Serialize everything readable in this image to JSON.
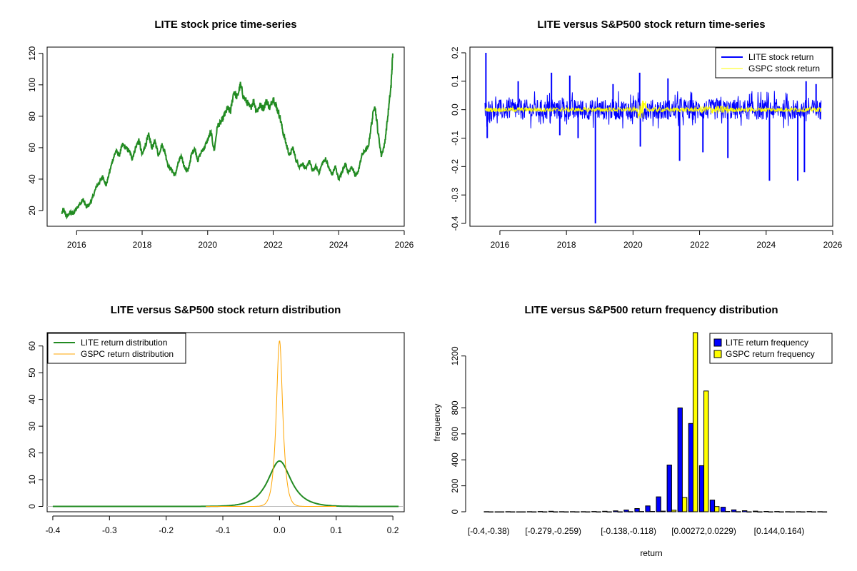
{
  "chart_data": [
    {
      "type": "line",
      "title": "LITE stock price time-series",
      "xlabel": "",
      "ylabel": "",
      "xlim": [
        2015.1,
        2026.0
      ],
      "ylim": [
        10,
        124
      ],
      "x_ticks": [
        2016,
        2018,
        2020,
        2022,
        2024,
        2026
      ],
      "y_ticks": [
        20,
        40,
        60,
        80,
        100,
        120
      ],
      "series": [
        {
          "color": "#228b22",
          "x": [
            2015.55,
            2015.6,
            2015.7,
            2015.8,
            2015.9,
            2016.0,
            2016.1,
            2016.2,
            2016.3,
            2016.4,
            2016.5,
            2016.6,
            2016.7,
            2016.8,
            2016.9,
            2017.0,
            2017.1,
            2017.2,
            2017.3,
            2017.4,
            2017.5,
            2017.6,
            2017.7,
            2017.8,
            2017.9,
            2018.0,
            2018.1,
            2018.2,
            2018.3,
            2018.4,
            2018.5,
            2018.6,
            2018.7,
            2018.8,
            2018.9,
            2019.0,
            2019.1,
            2019.2,
            2019.3,
            2019.4,
            2019.5,
            2019.6,
            2019.7,
            2019.8,
            2019.9,
            2020.0,
            2020.1,
            2020.2,
            2020.3,
            2020.4,
            2020.5,
            2020.6,
            2020.7,
            2020.8,
            2020.9,
            2021.0,
            2021.1,
            2021.2,
            2021.3,
            2021.4,
            2021.5,
            2021.6,
            2021.7,
            2021.8,
            2021.9,
            2022.0,
            2022.1,
            2022.2,
            2022.3,
            2022.4,
            2022.5,
            2022.6,
            2022.7,
            2022.8,
            2022.9,
            2023.0,
            2023.1,
            2023.2,
            2023.3,
            2023.4,
            2023.5,
            2023.6,
            2023.7,
            2023.8,
            2023.9,
            2024.0,
            2024.1,
            2024.2,
            2024.3,
            2024.4,
            2024.5,
            2024.6,
            2024.7,
            2024.8,
            2024.9,
            2025.0,
            2025.1,
            2025.2,
            2025.3,
            2025.4,
            2025.5,
            2025.6,
            2025.65
          ],
          "y": [
            18,
            21,
            16,
            19,
            18,
            22,
            24,
            27,
            22,
            24,
            29,
            35,
            38,
            42,
            36,
            44,
            52,
            58,
            55,
            62,
            60,
            58,
            53,
            60,
            65,
            55,
            62,
            68,
            60,
            64,
            55,
            62,
            57,
            48,
            46,
            42,
            50,
            55,
            47,
            45,
            55,
            60,
            52,
            57,
            60,
            65,
            70,
            58,
            74,
            76,
            80,
            85,
            83,
            96,
            92,
            100,
            92,
            89,
            85,
            90,
            83,
            87,
            85,
            90,
            85,
            92,
            86,
            80,
            70,
            62,
            55,
            60,
            52,
            48,
            50,
            46,
            52,
            45,
            48,
            44,
            50,
            53,
            47,
            43,
            48,
            40,
            44,
            50,
            44,
            48,
            42,
            45,
            55,
            58,
            60,
            75,
            88,
            70,
            55,
            62,
            80,
            100,
            120
          ]
        }
      ]
    },
    {
      "type": "line",
      "title": "LITE versus S&P500 stock return time-series",
      "xlabel": "",
      "ylabel": "",
      "xlim": [
        2015.1,
        2026.0
      ],
      "ylim": [
        -0.41,
        0.22
      ],
      "x_ticks": [
        2016,
        2018,
        2020,
        2022,
        2024,
        2026
      ],
      "y_ticks": [
        -0.4,
        -0.3,
        -0.2,
        -0.1,
        0.0,
        0.1,
        0.2
      ],
      "y_tick_labels": [
        "-0.4",
        "-0.3",
        "-0.2",
        "-0.1",
        "0.0",
        "0.1",
        "0.2"
      ],
      "legend": "top-right",
      "series": [
        {
          "name": "LITE stock return",
          "color": "#0000ff",
          "x_range": [
            2015.55,
            2025.65
          ],
          "typical_abs": 0.03
        },
        {
          "name": "GSPC stock return",
          "color": "#ffff00",
          "x_range": [
            2015.55,
            2025.65
          ],
          "typical_abs": 0.008
        }
      ],
      "spikes": [
        {
          "x": 2015.58,
          "y": 0.2
        },
        {
          "x": 2015.62,
          "y": -0.1
        },
        {
          "x": 2016.55,
          "y": 0.1
        },
        {
          "x": 2017.55,
          "y": 0.13
        },
        {
          "x": 2017.8,
          "y": -0.09
        },
        {
          "x": 2018.1,
          "y": 0.12
        },
        {
          "x": 2018.35,
          "y": -0.1
        },
        {
          "x": 2018.87,
          "y": -0.4
        },
        {
          "x": 2019.4,
          "y": 0.09
        },
        {
          "x": 2020.2,
          "y": 0.13
        },
        {
          "x": 2020.22,
          "y": -0.13
        },
        {
          "x": 2021.05,
          "y": 0.11
        },
        {
          "x": 2021.4,
          "y": -0.18
        },
        {
          "x": 2022.1,
          "y": -0.15
        },
        {
          "x": 2022.85,
          "y": -0.17
        },
        {
          "x": 2024.1,
          "y": -0.25
        },
        {
          "x": 2024.95,
          "y": -0.25
        },
        {
          "x": 2025.15,
          "y": -0.22
        },
        {
          "x": 2025.2,
          "y": 0.1
        },
        {
          "x": 2025.5,
          "y": 0.09
        }
      ]
    },
    {
      "type": "line",
      "title": "LITE versus S&P500 stock return distribution",
      "xlabel": "",
      "ylabel": "",
      "xlim": [
        -0.41,
        0.22
      ],
      "ylim": [
        -2,
        65
      ],
      "x_ticks": [
        -0.4,
        -0.3,
        -0.2,
        -0.1,
        0.0,
        0.1,
        0.2
      ],
      "x_tick_labels": [
        "-0.4",
        "-0.3",
        "-0.2",
        "-0.1",
        "0.0",
        "0.1",
        "0.2"
      ],
      "y_ticks": [
        0,
        10,
        20,
        30,
        40,
        50,
        60
      ],
      "legend": "top-left",
      "series": [
        {
          "name": "LITE return distribution",
          "color": "#228b22",
          "peak": 17,
          "center": 0.0,
          "spread": 0.025,
          "x_range": [
            -0.4,
            0.21
          ]
        },
        {
          "name": "GSPC return distribution",
          "color": "#ffa500",
          "peak": 62,
          "center": 0.0,
          "spread": 0.007,
          "x_range": [
            -0.13,
            0.1
          ]
        }
      ]
    },
    {
      "type": "bar",
      "title": "LITE versus S&P500 return frequency distribution",
      "xlabel": "return",
      "ylabel": "frequency",
      "ylim": [
        0,
        1380
      ],
      "y_ticks": [
        0,
        200,
        400,
        600,
        800,
        1200
      ],
      "x_tick_labels": [
        "[-0.4,-0.38)",
        "[-0.279,-0.259)",
        "[-0.138,-0.118)",
        "[0.00272,0.0229)",
        "[0.144,0.164)"
      ],
      "x_tick_label_bins": [
        0,
        6,
        13,
        20,
        27
      ],
      "legend": "top-right",
      "series": [
        {
          "name": "LITE return frequency",
          "color": "#0000ff",
          "values": [
            1,
            0,
            1,
            0,
            1,
            2,
            4,
            1,
            1,
            1,
            2,
            4,
            7,
            14,
            25,
            45,
            115,
            360,
            800,
            680,
            355,
            90,
            35,
            15,
            8,
            5,
            3,
            2,
            1,
            1,
            2,
            1
          ]
        },
        {
          "name": "GSPC return frequency",
          "color": "#ffff00",
          "values": [
            0,
            0,
            0,
            0,
            0,
            0,
            0,
            0,
            0,
            0,
            0,
            0,
            0,
            1,
            2,
            3,
            5,
            12,
            110,
            1380,
            930,
            40,
            3,
            1,
            0,
            0,
            0,
            0,
            0,
            0,
            0,
            0
          ]
        }
      ]
    }
  ]
}
